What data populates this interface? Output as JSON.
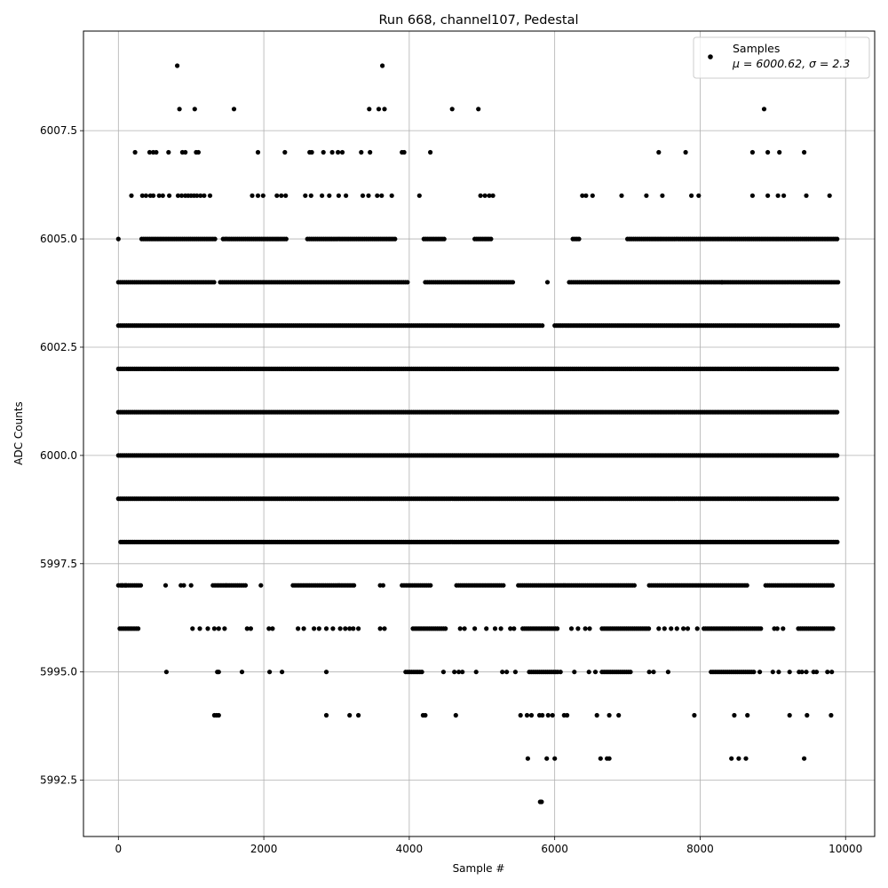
{
  "chart_data": {
    "type": "scatter",
    "title": "Run 668, channel107, Pedestal",
    "xlabel": "Sample #",
    "ylabel": "ADC Counts",
    "xlim": [
      -480,
      10400
    ],
    "ylim": [
      5991.2,
      6009.8
    ],
    "x_ticks": [
      0,
      2000,
      4000,
      6000,
      8000,
      10000
    ],
    "x_tick_labels": [
      "0",
      "2000",
      "4000",
      "6000",
      "8000",
      "10000"
    ],
    "y_ticks": [
      5992.5,
      5995.0,
      5997.5,
      6000.0,
      6002.5,
      6005.0,
      6007.5
    ],
    "y_tick_labels": [
      "5992.5",
      "5995.0",
      "5997.5",
      "6000.0",
      "6002.5",
      "6005.0",
      "6007.5"
    ],
    "grid": true,
    "legend_position": "top-right",
    "legend_entry": "Samples",
    "legend_stats": "μ = 6000.62, σ = 2.3",
    "marker_color": "#000000",
    "sample_range": [
      0,
      9900
    ],
    "level_bands": [
      {
        "y": 5998,
        "ranges": [
          [
            30,
            9900
          ]
        ]
      },
      {
        "y": 5999,
        "ranges": [
          [
            0,
            9900
          ]
        ]
      },
      {
        "y": 6000,
        "ranges": [
          [
            0,
            9900
          ]
        ]
      },
      {
        "y": 6001,
        "ranges": [
          [
            0,
            9900
          ]
        ]
      },
      {
        "y": 6002,
        "ranges": [
          [
            0,
            9900
          ]
        ]
      },
      {
        "y": 6003,
        "ranges": [
          [
            0,
            5820
          ],
          [
            6000,
            9900
          ]
        ]
      },
      {
        "y": 6004,
        "ranges": [
          [
            0,
            1320
          ],
          [
            1400,
            4000
          ],
          [
            4220,
            5430
          ],
          [
            6200,
            9900
          ]
        ]
      },
      {
        "y": 6005,
        "ranges": [
          [
            320,
            1340
          ],
          [
            1440,
            2320
          ],
          [
            2600,
            3820
          ],
          [
            4200,
            4500
          ],
          [
            4900,
            5150
          ],
          [
            6250,
            6350
          ],
          [
            7000,
            9900
          ]
        ]
      },
      {
        "y": 5997,
        "ranges": [
          [
            0,
            330
          ],
          [
            1300,
            1750
          ],
          [
            2400,
            3250
          ],
          [
            3900,
            4300
          ],
          [
            4650,
            5300
          ],
          [
            5500,
            7100
          ],
          [
            7300,
            8650
          ],
          [
            8900,
            9800
          ]
        ]
      },
      {
        "y": 5996,
        "ranges": [
          [
            20,
            280
          ],
          [
            4050,
            4500
          ],
          [
            5560,
            6040
          ],
          [
            6650,
            7300
          ],
          [
            8050,
            8850
          ],
          [
            9350,
            9850
          ]
        ]
      },
      {
        "y": 5995,
        "ranges": [
          [
            3950,
            4200
          ],
          [
            5650,
            6050
          ],
          [
            6650,
            7050
          ],
          [
            8150,
            8750
          ]
        ]
      }
    ],
    "extra_points": [
      [
        810,
        6009
      ],
      [
        3630,
        6009
      ],
      [
        840,
        6008
      ],
      [
        1050,
        6008
      ],
      [
        1590,
        6008
      ],
      [
        3450,
        6008
      ],
      [
        3580,
        6008
      ],
      [
        3660,
        6008
      ],
      [
        4590,
        6008
      ],
      [
        4950,
        6008
      ],
      [
        8880,
        6008
      ],
      [
        230,
        6007
      ],
      [
        430,
        6007
      ],
      [
        480,
        6007
      ],
      [
        520,
        6007
      ],
      [
        690,
        6007
      ],
      [
        880,
        6007
      ],
      [
        920,
        6007
      ],
      [
        1070,
        6007
      ],
      [
        1100,
        6007
      ],
      [
        1920,
        6007
      ],
      [
        2290,
        6007
      ],
      [
        2630,
        6007
      ],
      [
        2660,
        6007
      ],
      [
        2820,
        6007
      ],
      [
        2940,
        6007
      ],
      [
        3020,
        6007
      ],
      [
        3080,
        6007
      ],
      [
        3340,
        6007
      ],
      [
        3460,
        6007
      ],
      [
        3900,
        6007
      ],
      [
        3930,
        6007
      ],
      [
        4290,
        6007
      ],
      [
        7430,
        6007
      ],
      [
        7800,
        6007
      ],
      [
        8720,
        6007
      ],
      [
        8930,
        6007
      ],
      [
        9090,
        6007
      ],
      [
        9430,
        6007
      ],
      [
        180,
        6006
      ],
      [
        330,
        6006
      ],
      [
        380,
        6006
      ],
      [
        440,
        6006
      ],
      [
        480,
        6006
      ],
      [
        560,
        6006
      ],
      [
        610,
        6006
      ],
      [
        700,
        6006
      ],
      [
        820,
        6006
      ],
      [
        870,
        6006
      ],
      [
        920,
        6006
      ],
      [
        960,
        6006
      ],
      [
        1000,
        6006
      ],
      [
        1040,
        6006
      ],
      [
        1080,
        6006
      ],
      [
        1130,
        6006
      ],
      [
        1180,
        6006
      ],
      [
        1260,
        6006
      ],
      [
        1840,
        6006
      ],
      [
        1920,
        6006
      ],
      [
        1990,
        6006
      ],
      [
        2180,
        6006
      ],
      [
        2240,
        6006
      ],
      [
        2300,
        6006
      ],
      [
        2570,
        6006
      ],
      [
        2650,
        6006
      ],
      [
        2800,
        6006
      ],
      [
        2900,
        6006
      ],
      [
        3030,
        6006
      ],
      [
        3130,
        6006
      ],
      [
        3360,
        6006
      ],
      [
        3440,
        6006
      ],
      [
        3560,
        6006
      ],
      [
        3620,
        6006
      ],
      [
        3760,
        6006
      ],
      [
        4140,
        6006
      ],
      [
        4980,
        6006
      ],
      [
        5040,
        6006
      ],
      [
        5100,
        6006
      ],
      [
        5150,
        6006
      ],
      [
        6380,
        6006
      ],
      [
        6430,
        6006
      ],
      [
        6520,
        6006
      ],
      [
        6920,
        6006
      ],
      [
        7260,
        6006
      ],
      [
        7480,
        6006
      ],
      [
        7880,
        6006
      ],
      [
        7980,
        6006
      ],
      [
        8720,
        6006
      ],
      [
        8930,
        6006
      ],
      [
        9070,
        6006
      ],
      [
        9150,
        6006
      ],
      [
        9460,
        6006
      ],
      [
        9780,
        6006
      ],
      [
        0,
        6005
      ],
      [
        5900,
        6004
      ],
      [
        8300,
        6004
      ],
      [
        5830,
        6003
      ],
      [
        50,
        5997
      ],
      [
        100,
        5997
      ],
      [
        650,
        5997
      ],
      [
        860,
        5997
      ],
      [
        900,
        5997
      ],
      [
        1000,
        5997
      ],
      [
        1960,
        5997
      ],
      [
        3600,
        5997
      ],
      [
        3640,
        5997
      ],
      [
        9820,
        5997
      ],
      [
        1020,
        5996
      ],
      [
        1120,
        5996
      ],
      [
        1230,
        5996
      ],
      [
        1320,
        5996
      ],
      [
        1380,
        5996
      ],
      [
        1460,
        5996
      ],
      [
        1770,
        5996
      ],
      [
        1820,
        5996
      ],
      [
        2070,
        5996
      ],
      [
        2120,
        5996
      ],
      [
        2470,
        5996
      ],
      [
        2550,
        5996
      ],
      [
        2690,
        5996
      ],
      [
        2760,
        5996
      ],
      [
        2860,
        5996
      ],
      [
        2950,
        5996
      ],
      [
        3050,
        5996
      ],
      [
        3120,
        5996
      ],
      [
        3180,
        5996
      ],
      [
        3230,
        5996
      ],
      [
        3300,
        5996
      ],
      [
        3600,
        5996
      ],
      [
        3660,
        5996
      ],
      [
        4700,
        5996
      ],
      [
        4760,
        5996
      ],
      [
        4900,
        5996
      ],
      [
        5060,
        5996
      ],
      [
        5180,
        5996
      ],
      [
        5260,
        5996
      ],
      [
        5390,
        5996
      ],
      [
        5440,
        5996
      ],
      [
        6230,
        5996
      ],
      [
        6320,
        5996
      ],
      [
        6420,
        5996
      ],
      [
        6480,
        5996
      ],
      [
        7430,
        5996
      ],
      [
        7510,
        5996
      ],
      [
        7600,
        5996
      ],
      [
        7680,
        5996
      ],
      [
        7770,
        5996
      ],
      [
        7830,
        5996
      ],
      [
        7960,
        5996
      ],
      [
        9020,
        5996
      ],
      [
        9060,
        5996
      ],
      [
        9140,
        5996
      ],
      [
        660,
        5995
      ],
      [
        1360,
        5995
      ],
      [
        1380,
        5995
      ],
      [
        1700,
        5995
      ],
      [
        2080,
        5995
      ],
      [
        2250,
        5995
      ],
      [
        2860,
        5995
      ],
      [
        4470,
        5995
      ],
      [
        4620,
        5995
      ],
      [
        4680,
        5995
      ],
      [
        4730,
        5995
      ],
      [
        4920,
        5995
      ],
      [
        5280,
        5995
      ],
      [
        5340,
        5995
      ],
      [
        5460,
        5995
      ],
      [
        6080,
        5995
      ],
      [
        6270,
        5995
      ],
      [
        6470,
        5995
      ],
      [
        6560,
        5995
      ],
      [
        7300,
        5995
      ],
      [
        7360,
        5995
      ],
      [
        7560,
        5995
      ],
      [
        8820,
        5995
      ],
      [
        9000,
        5995
      ],
      [
        9080,
        5995
      ],
      [
        9230,
        5995
      ],
      [
        9360,
        5995
      ],
      [
        9400,
        5995
      ],
      [
        9460,
        5995
      ],
      [
        9560,
        5995
      ],
      [
        9600,
        5995
      ],
      [
        9750,
        5995
      ],
      [
        9810,
        5995
      ],
      [
        1320,
        5994
      ],
      [
        1350,
        5994
      ],
      [
        1380,
        5994
      ],
      [
        2860,
        5994
      ],
      [
        3180,
        5994
      ],
      [
        3300,
        5994
      ],
      [
        4190,
        5994
      ],
      [
        4220,
        5994
      ],
      [
        4640,
        5994
      ],
      [
        5530,
        5994
      ],
      [
        5620,
        5994
      ],
      [
        5680,
        5994
      ],
      [
        5790,
        5994
      ],
      [
        5830,
        5994
      ],
      [
        5910,
        5994
      ],
      [
        5970,
        5994
      ],
      [
        6130,
        5994
      ],
      [
        6170,
        5994
      ],
      [
        6580,
        5994
      ],
      [
        6750,
        5994
      ],
      [
        6880,
        5994
      ],
      [
        7920,
        5994
      ],
      [
        8470,
        5994
      ],
      [
        8650,
        5994
      ],
      [
        9230,
        5994
      ],
      [
        9470,
        5994
      ],
      [
        9800,
        5994
      ],
      [
        5630,
        5993
      ],
      [
        5890,
        5993
      ],
      [
        6000,
        5993
      ],
      [
        6630,
        5993
      ],
      [
        6720,
        5993
      ],
      [
        6750,
        5993
      ],
      [
        8430,
        5993
      ],
      [
        8530,
        5993
      ],
      [
        8630,
        5993
      ],
      [
        9430,
        5993
      ],
      [
        5800,
        5992
      ],
      [
        5820,
        5992
      ]
    ]
  }
}
